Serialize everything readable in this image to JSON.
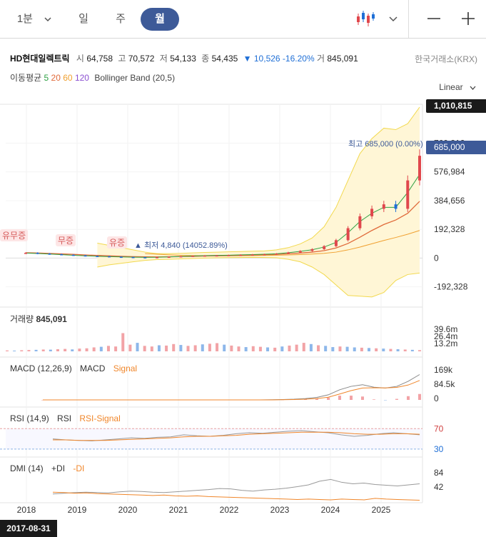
{
  "toolbar": {
    "timeframes": [
      {
        "label": "1분",
        "active": false
      },
      {
        "label": "일",
        "active": false
      },
      {
        "label": "주",
        "active": false
      },
      {
        "label": "월",
        "active": true
      }
    ],
    "chart_type_icon": "candlestick-icon",
    "zoom_out_icon": "minus-icon",
    "zoom_in_icon": "plus-icon",
    "dropdown_icon": "chevron-down-icon"
  },
  "quote": {
    "name": "HD현대일렉트릭",
    "open_label": "시",
    "open": "64,758",
    "high_label": "고",
    "high": "70,572",
    "low_label": "저",
    "low": "54,133",
    "close_label": "종",
    "close": "54,435",
    "change": "▼ 10,526 -16.20%",
    "volume_label": "거",
    "volume": "845,091",
    "exchange": "한국거래소(KRX)"
  },
  "indicators": {
    "ma_label": "이동평균",
    "ma_periods": [
      "5",
      "20",
      "60",
      "120"
    ],
    "bb_label": "Bollinger Band (20,5)"
  },
  "scale_mode": "Linear",
  "price_tags": {
    "upper": "1,010,815",
    "current": "685,000",
    "high_note": "최고 685,000 (0.00%) ▼",
    "low_note": "▲ 최저 4,840 (14052.89%)"
  },
  "events": [
    "유무증",
    "무증",
    "유증"
  ],
  "volume_panel": {
    "title": "거래량",
    "value": "845,091",
    "ticks": [
      "39.6m",
      "26.4m",
      "13.2m"
    ]
  },
  "macd_panel": {
    "title": "MACD (12,26,9)",
    "line": "MACD",
    "signal": "Signal",
    "ticks": [
      "169k",
      "84.5k",
      "0"
    ]
  },
  "rsi_panel": {
    "title": "RSI (14,9)",
    "line": "RSI",
    "signal": "RSI-Signal",
    "ticks": [
      "70",
      "30"
    ]
  },
  "dmi_panel": {
    "title": "DMI (14)",
    "plus": "+DI",
    "minus": "-DI",
    "ticks": [
      "84",
      "42"
    ]
  },
  "x_axis": [
    "2018",
    "2019",
    "2020",
    "2021",
    "2022",
    "2023",
    "2024",
    "2025"
  ],
  "cursor_date": "2017-08-31",
  "colors": {
    "up": "#e0474c",
    "down": "#1f6fd6",
    "accent": "#3d5a98",
    "ma5": "#2ea043",
    "ma20": "#e06a3a",
    "ma60": "#f0a030",
    "ma120": "#8a4fd0",
    "band_fill": "#fff6d6",
    "band_line": "#f2d94e"
  },
  "chart_data": {
    "type": "line",
    "title": "",
    "ylabel": "",
    "y_ticks": [
      -192328,
      0,
      192328,
      384656,
      576984,
      769312
    ],
    "ylim": [
      -280000,
      1010815
    ],
    "x": [
      "2017-08",
      "2017-11",
      "2018-02",
      "2018-05",
      "2018-08",
      "2018-11",
      "2019-02",
      "2019-05",
      "2019-08",
      "2019-11",
      "2020-02",
      "2020-05",
      "2020-08",
      "2020-11",
      "2021-02",
      "2021-05",
      "2021-08",
      "2021-11",
      "2022-02",
      "2022-05",
      "2022-08",
      "2022-11",
      "2023-02",
      "2023-05",
      "2023-08",
      "2023-11",
      "2024-02",
      "2024-05",
      "2024-08",
      "2024-11",
      "2025-02",
      "2025-05",
      "2025-08",
      "2025-10"
    ],
    "series": [
      {
        "name": "",
        "values": [
          35000,
          30000,
          26000,
          22000,
          18000,
          14000,
          12000,
          9000,
          7000,
          5500,
          4840,
          6000,
          9000,
          12000,
          15000,
          17000,
          18000,
          20000,
          22000,
          24000,
          26000,
          30000,
          38000,
          48000,
          60000,
          80000,
          120000,
          200000,
          280000,
          330000,
          360000,
          330000,
          520000,
          685000
        ]
      },
      {
        "name": "5",
        "values": [
          34000,
          31000,
          27000,
          23000,
          19000,
          15500,
          12500,
          10000,
          8000,
          6200,
          5200,
          5600,
          8000,
          11000,
          14000,
          16500,
          18000,
          19500,
          21500,
          23500,
          26000,
          29000,
          36000,
          45000,
          56000,
          74000,
          105000,
          170000,
          245000,
          300000,
          340000,
          340000,
          440000,
          560000
        ]
      },
      {
        "name": "20",
        "values": [
          36000,
          34000,
          31000,
          28000,
          25000,
          21000,
          18000,
          15000,
          12000,
          10000,
          8500,
          8000,
          8500,
          10000,
          12000,
          14000,
          15500,
          17000,
          19000,
          21000,
          23000,
          25500,
          29000,
          34000,
          40000,
          50000,
          68000,
          98000,
          140000,
          185000,
          225000,
          255000,
          300000,
          380000
        ]
      },
      {
        "name": "60",
        "values": [
          null,
          null,
          null,
          null,
          null,
          null,
          null,
          null,
          null,
          null,
          30000,
          26000,
          22000,
          19000,
          17000,
          16000,
          15500,
          15500,
          16000,
          17000,
          18000,
          19500,
          21000,
          23500,
          27000,
          32000,
          40000,
          55000,
          74000,
          96000,
          118000,
          138000,
          160000,
          185000
        ]
      },
      {
        "name": "BB upper",
        "values": [
          null,
          null,
          null,
          null,
          null,
          null,
          100000,
          85000,
          70000,
          55000,
          40000,
          30000,
          30000,
          32000,
          35000,
          38000,
          40000,
          42000,
          44000,
          46000,
          48000,
          55000,
          70000,
          95000,
          135000,
          210000,
          340000,
          520000,
          700000,
          800000,
          870000,
          860000,
          900000,
          1010815
        ]
      },
      {
        "name": "BB lower",
        "values": [
          null,
          null,
          null,
          null,
          null,
          null,
          -60000,
          -45000,
          -35000,
          -25000,
          -15000,
          -10000,
          -8000,
          -5000,
          -3000,
          0,
          2000,
          3000,
          4000,
          5000,
          4000,
          2000,
          -8000,
          -25000,
          -60000,
          -110000,
          -180000,
          -250000,
          -255000,
          -260000,
          -230000,
          -150000,
          -110000,
          -100000
        ]
      }
    ],
    "volume_m": [
      1.5,
      1.2,
      1.8,
      2.2,
      2.5,
      3.0,
      2.8,
      3.5,
      4.0,
      3.2,
      4.5,
      5.0,
      6.5,
      7.5,
      9.0,
      8.0,
      30.0,
      11.0,
      14.0,
      9.0,
      8.0,
      10.0,
      9.5,
      12.0,
      10.5,
      9.0,
      10.0,
      11.5,
      12.5,
      13.5,
      11.0,
      9.5,
      8.0,
      7.0,
      8.5,
      7.5,
      6.5,
      6.0,
      8.0,
      9.5,
      11.0,
      14.0,
      12.0,
      10.0,
      9.0,
      7.0,
      8.0,
      7.5,
      6.5,
      6.0,
      5.5,
      5.0,
      4.5,
      4.0,
      3.5,
      3.0,
      2.5,
      2.0
    ],
    "volume_up": [
      true,
      false,
      true,
      true,
      false,
      true,
      false,
      true,
      true,
      false,
      true,
      true,
      true,
      false,
      true,
      true,
      true,
      true,
      false,
      true,
      true,
      false,
      true,
      true,
      false,
      true,
      true,
      false,
      true,
      true,
      false,
      true,
      true,
      false,
      true,
      true,
      false,
      true,
      false,
      true,
      true,
      true,
      false,
      true,
      false,
      false,
      true,
      false,
      false,
      true,
      false,
      true,
      false,
      true,
      false,
      true,
      false,
      true
    ],
    "rsi": [
      50,
      48,
      47,
      46,
      48,
      50,
      52,
      51,
      53,
      54,
      58,
      56,
      55,
      57,
      60,
      62,
      61,
      63,
      65,
      66,
      64,
      62,
      58,
      55,
      57,
      60,
      62,
      60,
      58
    ],
    "rsi_signal": [
      48,
      48,
      47,
      47,
      47,
      48,
      49,
      50,
      51,
      52,
      54,
      55,
      55,
      56,
      57,
      59,
      60,
      61,
      62,
      63,
      63,
      63,
      62,
      60,
      59,
      59,
      60,
      60,
      59
    ],
    "macd_k": [
      0,
      0,
      0,
      0,
      0,
      0,
      0,
      0,
      0,
      0,
      0,
      0,
      0,
      0,
      0,
      0,
      0,
      0,
      0,
      0,
      1,
      2,
      4,
      8,
      15,
      30,
      60,
      80,
      90,
      75,
      70,
      80,
      110,
      150
    ],
    "macd_signal_k": [
      0,
      0,
      0,
      0,
      0,
      0,
      0,
      0,
      0,
      0,
      0,
      0,
      0,
      0,
      0,
      0,
      0,
      0,
      0,
      0,
      0,
      1,
      2,
      4,
      8,
      16,
      35,
      55,
      70,
      72,
      71,
      74,
      88,
      115
    ],
    "dmi_plus": [
      20,
      22,
      24,
      25,
      24,
      23,
      26,
      28,
      27,
      25,
      24,
      26,
      28,
      30,
      32,
      35,
      34,
      30,
      28,
      31,
      33,
      36,
      40,
      45,
      55,
      60,
      52,
      48,
      50,
      46,
      44,
      42,
      45,
      48
    ],
    "dmi_minus": [
      25,
      24,
      22,
      23,
      21,
      20,
      19,
      18,
      17,
      16,
      17,
      15,
      14,
      15,
      13,
      12,
      11,
      10,
      9,
      8,
      7,
      6,
      5,
      6,
      5,
      4,
      6,
      5,
      4,
      8,
      6,
      5,
      4,
      3
    ]
  }
}
